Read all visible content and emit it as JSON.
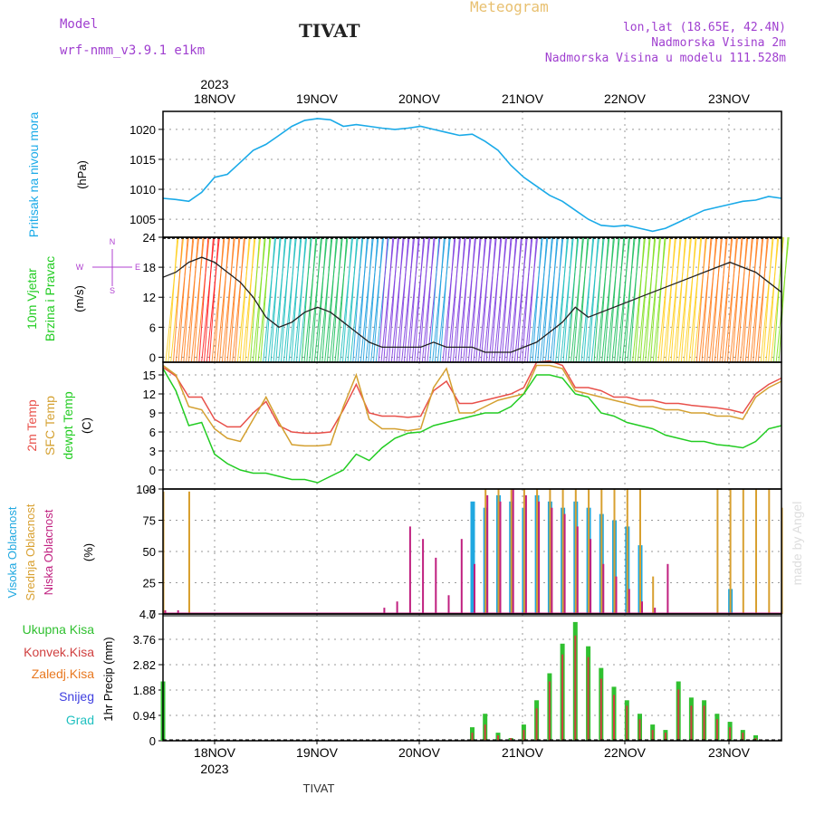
{
  "header": {
    "model_label": "Model",
    "model_name": "wrf-nmm_v3.9.1 e1km",
    "station": "TIVAT",
    "product": "Meteogram",
    "lonlat": "lon,lat (18.65E, 42.4N)",
    "elevation": "Nadmorska Visina 2m",
    "model_elevation": "Nadmorska Visina u modelu 111.528m"
  },
  "footer": {
    "station": "TIVAT"
  },
  "watermark": "made by Angel",
  "colors": {
    "pressure": "#1aaae8",
    "temp2m": "#e8504a",
    "sfctemp": "#d4a030",
    "dewpt": "#22cc22",
    "cloud_high": "#20a8e0",
    "cloud_mid": "#d8a030",
    "cloud_low": "#c02080",
    "precip_total": "#30c030",
    "precip_conv": "#d04040",
    "precip_frz": "#e87820",
    "precip_snow": "#4040e0",
    "precip_hail": "#20c0c0",
    "wind_speed": "#222222",
    "wind_rose": "#b040d0"
  },
  "chart_data": [
    {
      "type": "line",
      "ylabel": [
        "Pritisak na nivou mora",
        "(hPa)"
      ],
      "ylim": [
        1002,
        1023
      ],
      "yticks": [
        1005,
        1010,
        1015,
        1020
      ],
      "x_start": "2023-11-17 14:00",
      "x_end": "2023-11-23 13:00",
      "x_ticks": [
        "18NOV",
        "19NOV",
        "20NOV",
        "21NOV",
        "22NOV",
        "23NOV"
      ],
      "x_top_year": "2023",
      "x_bottom_year": "2023",
      "grid": true,
      "series": [
        {
          "values": [
            1008.5,
            1008.3,
            1008.0,
            1009.5,
            1012.0,
            1012.5,
            1014.5,
            1016.5,
            1017.5,
            1019.0,
            1020.5,
            1021.5,
            1021.8,
            1021.6,
            1020.5,
            1020.8,
            1020.5,
            1020.2,
            1020.0,
            1020.2,
            1020.5,
            1020.0,
            1019.5,
            1019.0,
            1019.2,
            1018.0,
            1016.5,
            1014.0,
            1012.0,
            1010.5,
            1009.0,
            1008.0,
            1006.5,
            1005.0,
            1004.0,
            1003.8,
            1004.0,
            1003.5,
            1003.0,
            1003.5,
            1004.5,
            1005.5,
            1006.5,
            1007.0,
            1007.5,
            1008.0,
            1008.2,
            1008.8,
            1008.5
          ]
        }
      ]
    },
    {
      "type": "line",
      "ylabel": [
        "10m Vjetar",
        "Brzina i Pravac",
        "(m/s)"
      ],
      "ylim": [
        -1,
        24
      ],
      "yticks": [
        0,
        6,
        12,
        18,
        24
      ],
      "rose": [
        "N",
        "E",
        "W",
        "S"
      ],
      "x_ticks": [
        "18NOV",
        "19NOV",
        "20NOV",
        "21NOV",
        "22NOV",
        "23NOV"
      ],
      "grid": true,
      "series": [
        {
          "name": "",
          "values": [
            16,
            17,
            19,
            20,
            19,
            17,
            15,
            12,
            8,
            6,
            7,
            9,
            10,
            9,
            7,
            5,
            3,
            2,
            2,
            2,
            2,
            3,
            2,
            2,
            2,
            1,
            1,
            1,
            2,
            3,
            5,
            7,
            10,
            8,
            9,
            10,
            11,
            12,
            13,
            14,
            15,
            16,
            17,
            18,
            19,
            18,
            17,
            15,
            13
          ]
        }
      ]
    },
    {
      "type": "line",
      "ylabel": [
        "2m Temp",
        "SFC Temp",
        "dewpt Temp",
        "(C)"
      ],
      "ylim": [
        -3,
        17
      ],
      "yticks": [
        -3,
        0,
        3,
        6,
        9,
        12,
        15
      ],
      "x_ticks": [
        "18NOV",
        "19NOV",
        "20NOV",
        "21NOV",
        "22NOV",
        "23NOV"
      ],
      "grid": true,
      "series": [
        {
          "name": "2m Temp",
          "values": [
            16.2,
            14.8,
            11.5,
            11.5,
            8.0,
            6.8,
            6.8,
            9.0,
            10.8,
            7.0,
            6.0,
            5.8,
            5.8,
            6.0,
            9.5,
            13.5,
            9.0,
            8.5,
            8.5,
            8.3,
            8.5,
            12.5,
            14.0,
            10.5,
            10.5,
            11.0,
            11.5,
            12.0,
            13.0,
            17.0,
            17.2,
            16.5,
            13.0,
            13.0,
            12.5,
            11.5,
            11.5,
            11.0,
            11.0,
            10.5,
            10.5,
            10.2,
            10.0,
            9.8,
            9.5,
            9.0,
            12.0,
            13.5,
            14.5
          ]
        },
        {
          "name": "SFC Temp",
          "values": [
            16.5,
            15.0,
            10.0,
            9.5,
            6.5,
            5.0,
            4.5,
            8.0,
            11.5,
            7.5,
            4.0,
            3.8,
            3.8,
            4.0,
            10.0,
            15.0,
            8.0,
            6.5,
            6.5,
            6.2,
            6.5,
            13.0,
            16.0,
            9.0,
            9.0,
            10.0,
            11.0,
            11.5,
            12.0,
            16.5,
            16.5,
            16.0,
            12.5,
            12.0,
            11.5,
            11.0,
            10.5,
            10.0,
            10.0,
            9.5,
            9.5,
            9.0,
            9.0,
            8.5,
            8.5,
            8.0,
            11.5,
            13.0,
            14.0
          ]
        },
        {
          "name": "dewpt Temp",
          "values": [
            16.0,
            12.5,
            7.0,
            7.5,
            2.5,
            1.0,
            0.0,
            -0.5,
            -0.5,
            -1.0,
            -1.5,
            -1.5,
            -2.0,
            -1.0,
            0.0,
            2.5,
            1.5,
            3.5,
            5.0,
            5.8,
            6.0,
            7.0,
            7.5,
            8.0,
            8.5,
            9.0,
            9.0,
            10.0,
            12.0,
            15.0,
            15.0,
            14.5,
            12.0,
            11.5,
            9.0,
            8.5,
            7.5,
            7.0,
            6.5,
            5.5,
            5.0,
            4.5,
            4.5,
            4.0,
            3.8,
            3.5,
            4.5,
            6.5,
            7.0
          ]
        }
      ]
    },
    {
      "type": "bar",
      "ylabel": [
        "Visoka Oblacnost",
        "Srednja Oblacnost",
        "Niska Oblacnost",
        "(%)"
      ],
      "ylim": [
        0,
        100
      ],
      "yticks": [
        0,
        25,
        50,
        75,
        100
      ],
      "x_ticks": [
        "18NOV",
        "19NOV",
        "20NOV",
        "21NOV",
        "22NOV",
        "23NOV"
      ],
      "grid": true,
      "series": [
        {
          "name": "Visoka Oblacnost",
          "values": [
            0,
            0,
            0,
            0,
            0,
            0,
            0,
            0,
            0,
            0,
            0,
            0,
            0,
            0,
            0,
            0,
            0,
            0,
            0,
            0,
            0,
            0,
            0,
            0,
            90,
            85,
            95,
            90,
            85,
            95,
            90,
            85,
            90,
            85,
            80,
            75,
            70,
            55,
            0,
            0,
            0,
            0,
            0,
            0,
            20,
            0,
            0,
            0,
            0
          ]
        },
        {
          "name": "Srednja Oblacnost",
          "values": [
            98,
            0,
            98,
            0,
            0,
            0,
            0,
            0,
            0,
            0,
            0,
            0,
            0,
            0,
            0,
            0,
            0,
            0,
            0,
            0,
            0,
            0,
            0,
            0,
            0,
            100,
            100,
            100,
            100,
            100,
            100,
            100,
            100,
            100,
            100,
            100,
            100,
            100,
            30,
            0,
            0,
            0,
            0,
            100,
            100,
            100,
            100,
            100,
            85
          ]
        },
        {
          "name": "Niska Oblacnost",
          "values": [
            3,
            3,
            0,
            0,
            0,
            0,
            0,
            0,
            0,
            0,
            0,
            0,
            0,
            0,
            0,
            0,
            0,
            5,
            10,
            70,
            60,
            45,
            15,
            60,
            40,
            95,
            90,
            100,
            95,
            90,
            85,
            80,
            70,
            60,
            40,
            30,
            20,
            10,
            5,
            40,
            0,
            0,
            0,
            0,
            0,
            0,
            0,
            0,
            0
          ]
        }
      ]
    },
    {
      "type": "bar",
      "ylabel": [
        "Ukupna Kisa",
        "Konvek.Kisa",
        "Zaledj.Kisa",
        "Snijeg",
        "Grad",
        "1hr Precip (mm)"
      ],
      "ylim": [
        0,
        4.7
      ],
      "yticks": [
        0,
        0.94,
        1.88,
        2.82,
        3.76,
        4.7
      ],
      "ytick_labels": [
        "0",
        "0.94",
        "1.88",
        "2.82",
        "3.76",
        "4.7"
      ],
      "x_ticks": [
        "18NOV",
        "19NOV",
        "20NOV",
        "21NOV",
        "22NOV",
        "23NOV"
      ],
      "x_bottom_year": "2023",
      "grid": true,
      "series": [
        {
          "name": "Ukupna Kisa",
          "values": [
            2.2,
            0,
            0,
            0,
            0,
            0,
            0,
            0,
            0,
            0,
            0,
            0,
            0,
            0,
            0,
            0,
            0,
            0,
            0,
            0,
            0,
            0,
            0,
            0,
            0.5,
            1.0,
            0.3,
            0.1,
            0.6,
            1.5,
            2.5,
            3.6,
            4.4,
            3.5,
            2.7,
            2.0,
            1.5,
            1.0,
            0.6,
            0.4,
            2.2,
            1.6,
            1.5,
            1.0,
            0.7,
            0.4,
            0.2,
            0.0,
            0.0
          ]
        },
        {
          "name": "Konvek.Kisa",
          "values": [
            0,
            0,
            0,
            0,
            0,
            0,
            0,
            0,
            0,
            0,
            0,
            0,
            0,
            0,
            0,
            0,
            0,
            0,
            0,
            0,
            0,
            0,
            0,
            0,
            0.3,
            0.6,
            0.2,
            0.1,
            0.4,
            1.2,
            2.2,
            3.2,
            3.9,
            3.1,
            2.3,
            1.7,
            1.3,
            0.8,
            0.4,
            0.3,
            1.9,
            1.3,
            1.3,
            0.8,
            0.5,
            0.3,
            0.1,
            0.0,
            0.0
          ]
        },
        {
          "name": "Zaledj.Kisa",
          "values": []
        },
        {
          "name": "Snijeg",
          "values": []
        },
        {
          "name": "Grad",
          "values": []
        }
      ]
    }
  ]
}
